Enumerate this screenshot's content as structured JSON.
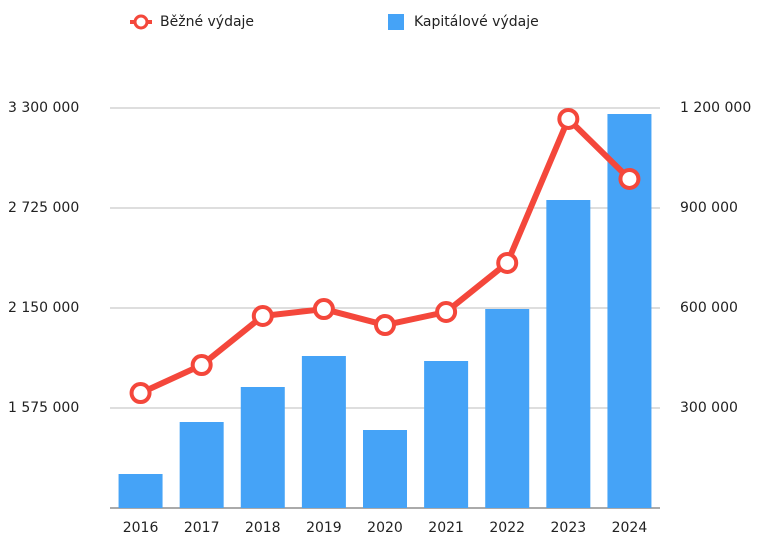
{
  "chart_data": {
    "type": "bar-line",
    "categories": [
      "2016",
      "2017",
      "2018",
      "2019",
      "2020",
      "2021",
      "2022",
      "2023",
      "2024"
    ],
    "series": [
      {
        "name": "Běžné výdaje",
        "type": "line",
        "color": "#f4473b",
        "axis": "y",
        "values": [
          1661000,
          1822000,
          2104000,
          2144000,
          2052000,
          2127000,
          2409000,
          3237000,
          2892000
        ]
      },
      {
        "name": "Kapitálové výdaje",
        "type": "bar",
        "color": "#45a3f7",
        "axis": "y2",
        "values": [
          102000,
          258000,
          363000,
          456000,
          234000,
          441000,
          597000,
          924000,
          1182000
        ]
      }
    ],
    "ylim": [
      1000000,
      3300000
    ],
    "yticks": [
      {
        "value": 1575000,
        "label": "1 575 000"
      },
      {
        "value": 2150000,
        "label": "2 150 000"
      },
      {
        "value": 2725000,
        "label": "2 725 000"
      },
      {
        "value": 3300000,
        "label": "3 300 000"
      }
    ],
    "y2lim": [
      0,
      1200000
    ],
    "y2ticks": [
      {
        "value": 300000,
        "label": "300 000"
      },
      {
        "value": 600000,
        "label": "600 000"
      },
      {
        "value": 900000,
        "label": "900 000"
      },
      {
        "value": 1200000,
        "label": "1 200 000"
      }
    ],
    "grid": true,
    "legend": "top"
  }
}
